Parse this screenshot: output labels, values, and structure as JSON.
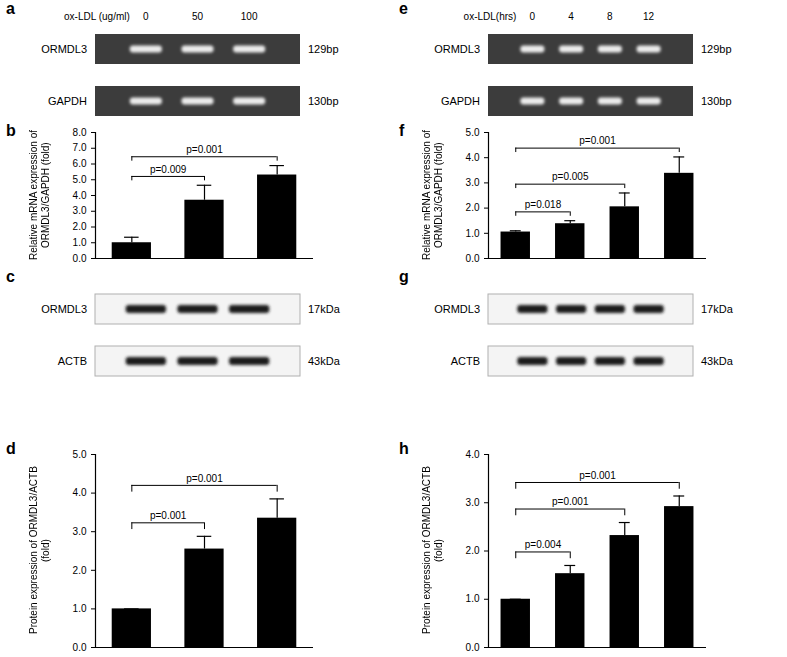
{
  "chart_data": [
    {
      "type": "gel",
      "title": "a",
      "header": "ox-LDL (ug/ml)",
      "categories": [
        "0",
        "50",
        "100"
      ],
      "color": "#3c3c3c",
      "blots": [
        {
          "name": "ORMDL3",
          "size": "129bp"
        },
        {
          "name": "GAPDH",
          "size": "130bp"
        }
      ]
    },
    {
      "type": "bar",
      "title": "b",
      "categories": [
        null,
        null,
        null
      ],
      "values": [
        1.0,
        3.7,
        5.3
      ],
      "errors": [
        0.35,
        0.95,
        0.6
      ],
      "color": "#000000",
      "ylabel": "Relative mRNA expression of ORMDL3/GAPDH (fold)",
      "ylim": [
        0,
        8
      ],
      "yticks": [
        {
          "value": 0,
          "label": "0.0"
        },
        {
          "value": 1,
          "label": "1.0"
        },
        {
          "value": 2,
          "label": "2.0"
        },
        {
          "value": 3,
          "label": "3.0"
        },
        {
          "value": 4,
          "label": "4.0"
        },
        {
          "value": 5,
          "label": "5.0"
        },
        {
          "value": 6,
          "label": "6.0"
        },
        {
          "value": 7,
          "label": "7.0"
        },
        {
          "value": 8,
          "label": "8.0"
        }
      ],
      "annotations": [
        {
          "from": 0,
          "to": 1,
          "label": "p=0.009"
        },
        {
          "from": 0,
          "to": 2,
          "label": "p=0.001"
        }
      ]
    },
    {
      "type": "gel",
      "title": "c",
      "categories": [
        null,
        null,
        null
      ],
      "color": "#f4f4f4",
      "blots": [
        {
          "name": "ORMDL3",
          "size": "17kDa"
        },
        {
          "name": "ACTB",
          "size": "43kDa"
        }
      ]
    },
    {
      "type": "bar",
      "title": "d",
      "categories": [
        null,
        null,
        null
      ],
      "values": [
        1.0,
        2.55,
        3.35
      ],
      "errors": [
        0,
        0.33,
        0.5
      ],
      "color": "#000000",
      "ylabel": "Protein expression of ORMDL3/ACTB (fold)",
      "ylim": [
        0,
        5
      ],
      "yticks": [
        {
          "value": 0,
          "label": "0.0"
        },
        {
          "value": 1,
          "label": "1.0"
        },
        {
          "value": 2,
          "label": "2.0"
        },
        {
          "value": 3,
          "label": "3.0"
        },
        {
          "value": 4,
          "label": "4.0"
        },
        {
          "value": 5,
          "label": "5.0"
        }
      ],
      "annotations": [
        {
          "from": 0,
          "to": 1,
          "label": "p=0.001"
        },
        {
          "from": 0,
          "to": 2,
          "label": "p=0.001"
        }
      ]
    },
    {
      "type": "gel",
      "title": "e",
      "header": "ox-LDL(hrs)",
      "categories": [
        "0",
        "4",
        "8",
        "12"
      ],
      "color": "#3c3c3c",
      "blots": [
        {
          "name": "ORMDL3",
          "size": "129bp"
        },
        {
          "name": "GAPDH",
          "size": "130bp"
        }
      ]
    },
    {
      "type": "bar",
      "title": "f",
      "categories": [
        null,
        null,
        null,
        null
      ],
      "values": [
        1.05,
        1.38,
        2.05,
        3.38
      ],
      "errors": [
        0.05,
        0.12,
        0.55,
        0.65
      ],
      "color": "#000000",
      "ylabel": "Relative mRNA expression of ORMDL3/GAPDH (fold)",
      "ylim": [
        0,
        5
      ],
      "yticks": [
        {
          "value": 0,
          "label": "0.0"
        },
        {
          "value": 1,
          "label": "1.0"
        },
        {
          "value": 2,
          "label": "2.0"
        },
        {
          "value": 3,
          "label": "3.0"
        },
        {
          "value": 4,
          "label": "4.0"
        },
        {
          "value": 5,
          "label": "5.0"
        }
      ],
      "annotations": [
        {
          "from": 0,
          "to": 1,
          "label": "p=0.018"
        },
        {
          "from": 0,
          "to": 2,
          "label": "p=0.005"
        },
        {
          "from": 0,
          "to": 3,
          "label": "p=0.001"
        }
      ]
    },
    {
      "type": "gel",
      "title": "g",
      "categories": [
        null,
        null,
        null,
        null
      ],
      "color": "#f4f4f4",
      "blots": [
        {
          "name": "ORMDL3",
          "size": "17kDa"
        },
        {
          "name": "ACTB",
          "size": "43kDa"
        }
      ]
    },
    {
      "type": "bar",
      "title": "h",
      "categories": [
        null,
        null,
        null,
        null
      ],
      "values": [
        1.0,
        1.53,
        2.32,
        2.92
      ],
      "errors": [
        0,
        0.17,
        0.27,
        0.22
      ],
      "color": "#000000",
      "ylabel": "Protein expression of ORMDL3/ACTB (fold)",
      "ylim": [
        0,
        4
      ],
      "yticks": [
        {
          "value": 0,
          "label": "0.0"
        },
        {
          "value": 1,
          "label": "1.0"
        },
        {
          "value": 2,
          "label": "2.0"
        },
        {
          "value": 3,
          "label": "3.0"
        },
        {
          "value": 4,
          "label": "4.0"
        }
      ],
      "annotations": [
        {
          "from": 0,
          "to": 1,
          "label": "p=0.004"
        },
        {
          "from": 0,
          "to": 2,
          "label": "p=0.001"
        },
        {
          "from": 0,
          "to": 3,
          "label": "p=0.001"
        }
      ]
    }
  ]
}
